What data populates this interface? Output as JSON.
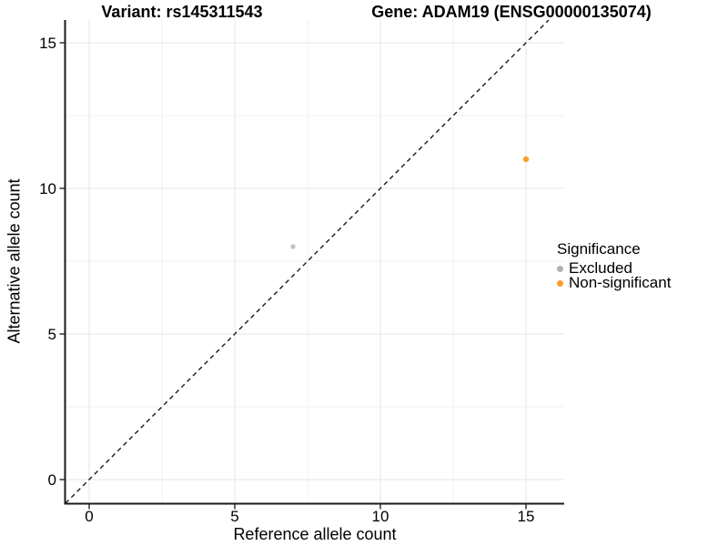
{
  "header": {
    "variant_title": "Variant: rs145311543",
    "gene_title": "Gene: ADAM19 (ENSG00000135074)"
  },
  "chart_data": {
    "type": "scatter",
    "title": "Variant: rs145311543   Gene: ADAM19 (ENSG00000135074)",
    "xlabel": "Reference allele count",
    "ylabel": "Alternative allele count",
    "xlim": [
      -0.8,
      16.3
    ],
    "ylim": [
      -0.8,
      15.8
    ],
    "xticks": [
      0,
      5,
      10,
      15
    ],
    "yticks": [
      0,
      5,
      10,
      15
    ],
    "minor_ticks": [
      2.5,
      7.5,
      12.5
    ],
    "grid": true,
    "identity_line": {
      "equation": "y = x",
      "style": "dashed",
      "color": "#1a1a1a"
    },
    "points": [
      {
        "x": 7,
        "y": 8,
        "group": "Excluded",
        "color": "#C2C2C2",
        "radius": 2.6
      },
      {
        "x": 15,
        "y": 11,
        "group": "Non-significant",
        "color": "#FB9E2B",
        "radius": 3.2
      }
    ],
    "legend": {
      "title": "Significance",
      "position": "right",
      "items": [
        {
          "label": "Excluded",
          "color": "#B3B3B3"
        },
        {
          "label": "Non-significant",
          "color": "#FB9E2B"
        }
      ]
    },
    "style": {
      "grid_major": "#E5E5E5",
      "grid_minor": "#F2F2F2",
      "axis_color": "#1a1a1a",
      "tick_color": "#333333",
      "text_color": "#000000",
      "background": "#FFFFFF"
    }
  }
}
